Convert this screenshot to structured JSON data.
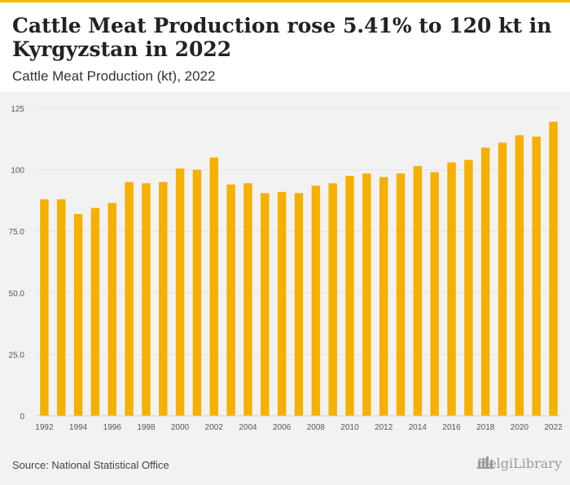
{
  "header": {
    "title": "Cattle Meat Production rose 5.41% to 120 kt in Kyrgyzstan in 2022",
    "subtitle": "Cattle Meat Production (kt), 2022"
  },
  "footer": {
    "source": "Source: National Statistical Office",
    "brand": "HelgiLibrary"
  },
  "colors": {
    "bar": "#f5b000",
    "grid": "#e3e3e3",
    "axis_text": "#555555"
  },
  "chart_data": {
    "type": "bar",
    "title": "",
    "xlabel": "",
    "ylabel": "",
    "ylim": [
      0,
      125
    ],
    "y_ticks": [
      "0",
      "25.0",
      "50.0",
      "75.0",
      "100",
      "125"
    ],
    "y_tick_values": [
      0,
      25,
      50,
      75,
      100,
      125
    ],
    "grid": true,
    "categories": [
      "1992",
      "1993",
      "1994",
      "1995",
      "1996",
      "1997",
      "1998",
      "1999",
      "2000",
      "2001",
      "2002",
      "2003",
      "2004",
      "2005",
      "2006",
      "2007",
      "2008",
      "2009",
      "2010",
      "2011",
      "2012",
      "2013",
      "2014",
      "2015",
      "2016",
      "2017",
      "2018",
      "2019",
      "2020",
      "2021",
      "2022"
    ],
    "x_tick_labels": [
      "1992",
      "1994",
      "1996",
      "1998",
      "2000",
      "2002",
      "2004",
      "2006",
      "2008",
      "2010",
      "2012",
      "2014",
      "2016",
      "2018",
      "2020",
      "2022"
    ],
    "values": [
      88,
      88,
      82,
      84.5,
      86.5,
      95,
      94.5,
      95,
      100.5,
      100,
      105,
      94,
      94.5,
      90.5,
      91,
      90.5,
      93.5,
      94.5,
      97.5,
      98.5,
      97,
      98.5,
      101.5,
      99,
      103,
      104,
      109,
      111,
      114,
      113.5,
      119.5
    ]
  }
}
